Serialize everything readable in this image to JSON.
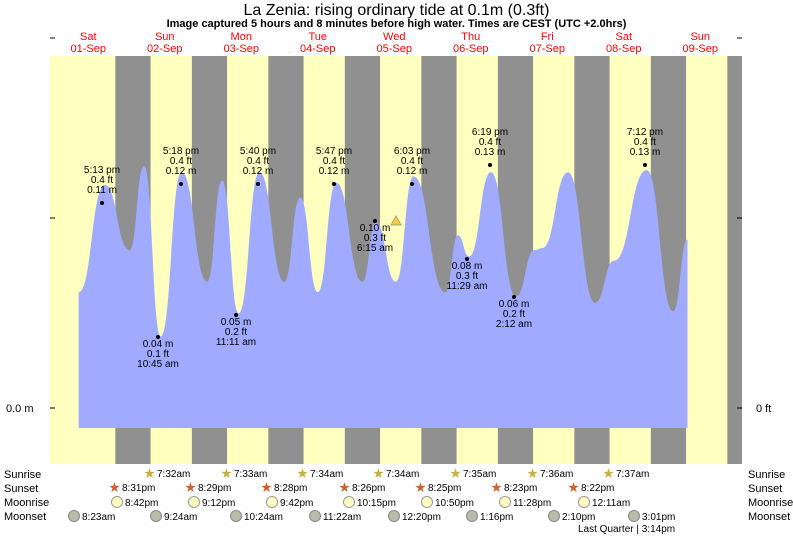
{
  "header": {
    "title": "La Zenia: rising  ordinary tide at 0.1m (0.3ft)",
    "subtitle": "Image captured 5 hours and 8 minutes before high water. Times are CEST (UTC +2.0hrs)"
  },
  "colors": {
    "day": "#ffffbf",
    "night": "#909090",
    "tide_fill": "#a0aaff",
    "date_text": "#ff0000",
    "marker": "#ffcc33"
  },
  "chart_data": {
    "type": "area",
    "title": "La Zenia: rising  ordinary tide at 0.1m (0.3ft)",
    "y_unit_left": "m",
    "y_unit_right": "ft",
    "yaxis_left_label": "0.0 m",
    "yaxis_right_label": "0 ft",
    "days": [
      {
        "dow": "Sat",
        "date": "01-Sep"
      },
      {
        "dow": "Sun",
        "date": "02-Sep"
      },
      {
        "dow": "Mon",
        "date": "03-Sep"
      },
      {
        "dow": "Tue",
        "date": "04-Sep"
      },
      {
        "dow": "Wed",
        "date": "05-Sep"
      },
      {
        "dow": "Thu",
        "date": "06-Sep"
      },
      {
        "dow": "Fri",
        "date": "07-Sep"
      },
      {
        "dow": "Sat",
        "date": "08-Sep"
      },
      {
        "dow": "Sun",
        "date": "09-Sep"
      }
    ],
    "tide_events": [
      {
        "time": "5:13 pm",
        "ft": "0.4 ft",
        "m": "0.11 m",
        "type": "high"
      },
      {
        "time": "10:45 am",
        "ft": "0.1 ft",
        "m": "0.04 m",
        "type": "low"
      },
      {
        "time": "5:18 pm",
        "ft": "0.4 ft",
        "m": "0.12 m",
        "type": "high"
      },
      {
        "time": "11:11 am",
        "ft": "0.2 ft",
        "m": "0.05 m",
        "type": "low"
      },
      {
        "time": "5:40 pm",
        "ft": "0.4 ft",
        "m": "0.12 m",
        "type": "high"
      },
      {
        "time": "5:47 pm",
        "ft": "0.4 ft",
        "m": "0.12 m",
        "type": "high"
      },
      {
        "time": "6:15 am",
        "ft": "0.3 ft",
        "m": "0.10 m",
        "type": "low"
      },
      {
        "time": "6:03 pm",
        "ft": "0.4 ft",
        "m": "0.12 m",
        "type": "high"
      },
      {
        "time": "11:29 am",
        "ft": "0.3 ft",
        "m": "0.08 m",
        "type": "low"
      },
      {
        "time": "6:19 pm",
        "ft": "0.4 ft",
        "m": "0.13 m",
        "type": "high"
      },
      {
        "time": "2:12 am",
        "ft": "0.2 ft",
        "m": "0.06 m",
        "type": "low"
      },
      {
        "time": "7:12 pm",
        "ft": "0.4 ft",
        "m": "0.13 m",
        "type": "high"
      }
    ]
  },
  "astro": {
    "labels": {
      "sunrise": "Sunrise",
      "sunset": "Sunset",
      "moonrise": "Moonrise",
      "moonset": "Moonset"
    },
    "sunrise": [
      "7:32am",
      "7:33am",
      "7:34am",
      "7:34am",
      "7:35am",
      "7:36am",
      "7:37am"
    ],
    "sunset": [
      "8:31pm",
      "8:29pm",
      "8:28pm",
      "8:26pm",
      "8:25pm",
      "8:23pm",
      "8:22pm"
    ],
    "moonrise": [
      "8:42pm",
      "9:12pm",
      "9:42pm",
      "10:15pm",
      "10:50pm",
      "11:28pm",
      "12:11am"
    ],
    "moonset": [
      "8:23am",
      "9:24am",
      "10:24am",
      "11:22am",
      "12:20pm",
      "1:16pm",
      "2:10pm",
      "3:01pm"
    ],
    "moon_phase": "Last Quarter | 3:14pm"
  }
}
